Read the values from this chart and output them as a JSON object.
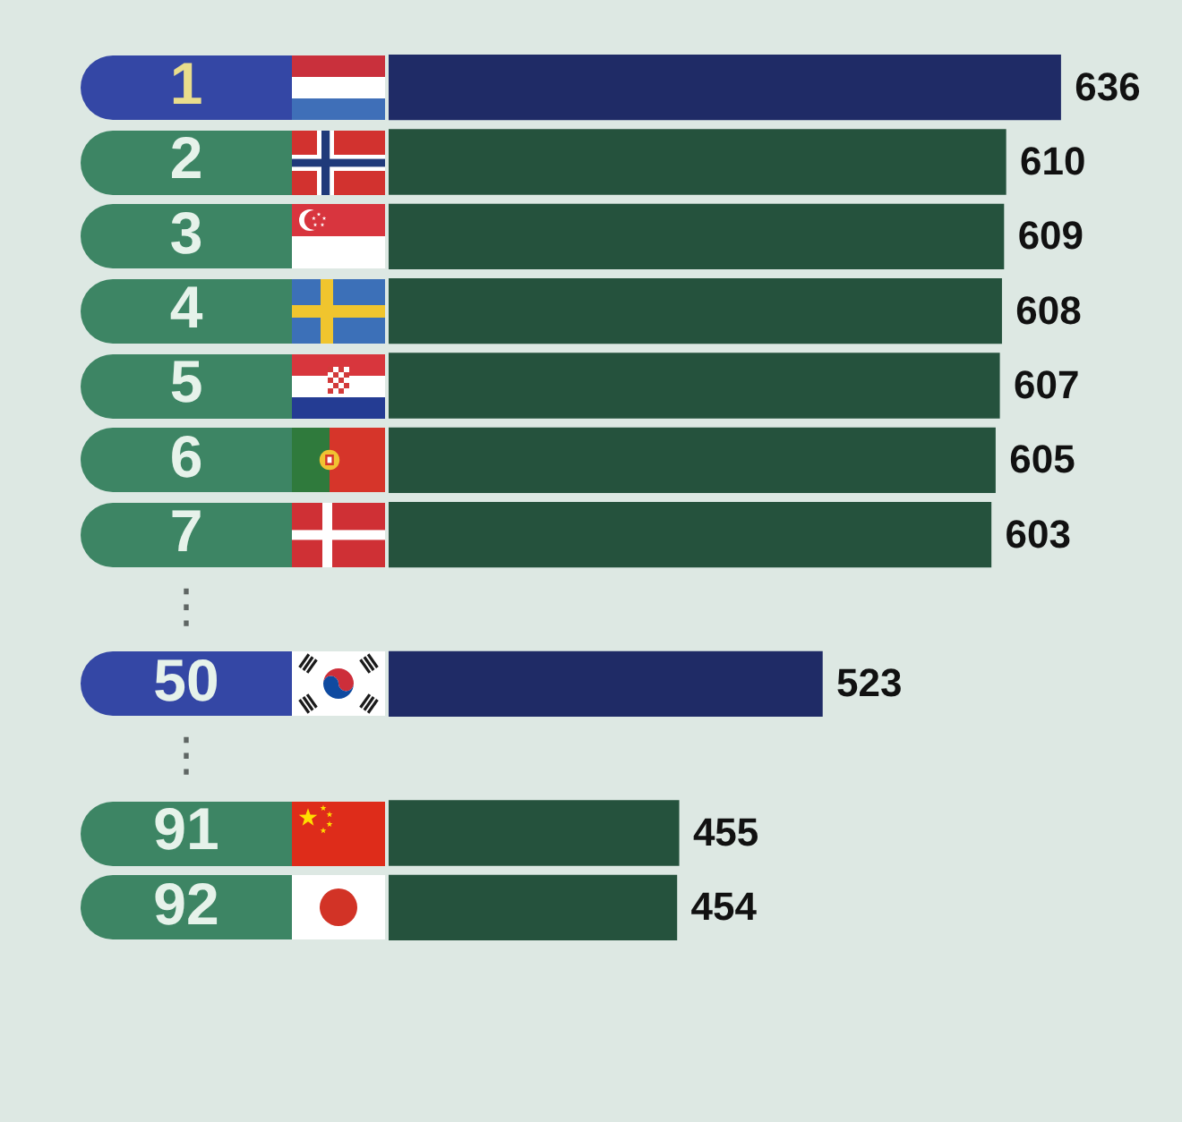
{
  "chart_data": {
    "type": "bar",
    "orientation": "horizontal",
    "categories": [
      "1",
      "2",
      "3",
      "4",
      "5",
      "6",
      "7",
      "⋮",
      "50",
      "⋮",
      "91",
      "92"
    ],
    "values": [
      636,
      610,
      609,
      608,
      607,
      605,
      603,
      null,
      523,
      null,
      455,
      454
    ],
    "colors": [
      "#1f2b66",
      "#25523d",
      "#25523d",
      "#25523d",
      "#25523d",
      "#25523d",
      "#25523d",
      null,
      "#1f2b66",
      null,
      "#25523d",
      "#25523d"
    ],
    "data_labels": true,
    "tick_labels": "y"
  }
}
